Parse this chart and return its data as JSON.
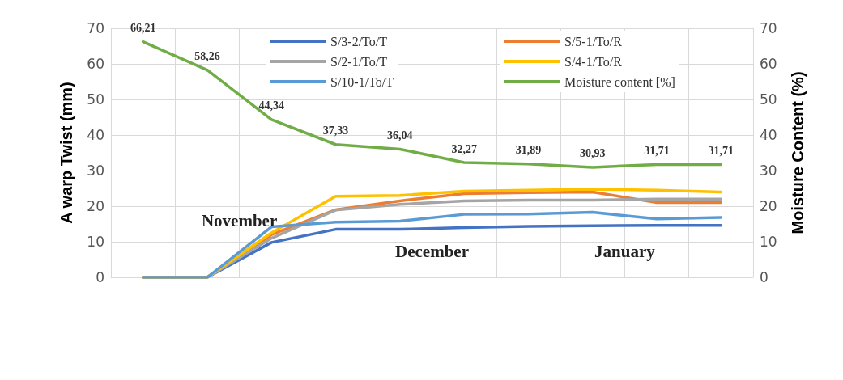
{
  "chart_data": {
    "type": "line",
    "ylabel": "A warp Twist (mm)",
    "y2label": "Moisture Content (%)",
    "categories": [
      null,
      null,
      null,
      null,
      null,
      null,
      null,
      null,
      null,
      null
    ],
    "ylim": [
      0,
      70
    ],
    "yticks": [
      0,
      10,
      20,
      30,
      40,
      50,
      60,
      70
    ],
    "y2lim": [
      0,
      70
    ],
    "y2ticks": [
      0,
      10,
      20,
      30,
      40,
      50,
      60,
      70
    ],
    "grid": true,
    "legend": "top",
    "marker": "none",
    "line_style": "solid",
    "annotations": [
      "November",
      "December",
      "January"
    ],
    "series": [
      {
        "name": "S/3-2/To/T",
        "color": "#4472c4",
        "values": [
          0,
          0,
          9.8,
          13.5,
          13.5,
          14,
          14.3,
          14.5,
          14.6,
          14.6
        ]
      },
      {
        "name": "S/5-1/To/R",
        "color": "#ed7d31",
        "values": [
          0,
          0,
          12,
          19,
          21.5,
          23.5,
          23.8,
          24,
          21,
          21
        ]
      },
      {
        "name": "S/2-1/To/T",
        "color": "#a5a5a5",
        "values": [
          0,
          0,
          11,
          18.9,
          20.5,
          21.5,
          21.7,
          21.7,
          22,
          22
        ]
      },
      {
        "name": "S/4-1/To/R",
        "color": "#ffc000",
        "values": [
          0,
          0,
          12.5,
          22.8,
          23,
          24.2,
          24.5,
          24.8,
          24.5,
          24
        ]
      },
      {
        "name": "S/10-1/To/T",
        "color": "#5b9bd5",
        "values": [
          0,
          0,
          14.2,
          15.5,
          15.8,
          17.7,
          17.8,
          18.3,
          16.4,
          16.8
        ]
      },
      {
        "name": "Moisture content [%]",
        "color": "#70ad47",
        "axis": "y2",
        "values": [
          66.21,
          58.26,
          44.34,
          37.33,
          36.04,
          32.27,
          31.89,
          30.93,
          31.71,
          31.71
        ],
        "value_labels": [
          "66,21",
          "58,26",
          "44,34",
          "37,33",
          "36,04",
          "32,27",
          "31,89",
          "30,93",
          "31,71",
          "31,71"
        ]
      }
    ]
  }
}
